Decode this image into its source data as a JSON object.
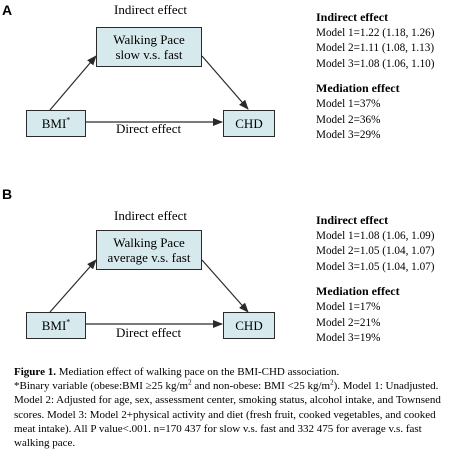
{
  "panels": [
    {
      "letter": "A",
      "indirect_label": "Indirect effect",
      "direct_label": "Direct effect",
      "mediator_line1": "Walking Pace",
      "mediator_line2": "slow v.s. fast",
      "exposure": "BMI",
      "exposure_marker": "*",
      "outcome": "CHD",
      "indirect_header": "Indirect effect",
      "indirect_rows": [
        "Model 1=1.22 (1.18, 1.26)",
        "Model 2=1.11 (1.08, 1.13)",
        "Model 3=1.08 (1.06, 1.10)"
      ],
      "mediation_header": "Mediation effect",
      "mediation_rows": [
        "Model 1=37%",
        "Model 2=36%",
        "Model 3=29%"
      ]
    },
    {
      "letter": "B",
      "indirect_label": "Indirect effect",
      "direct_label": "Direct effect",
      "mediator_line1": "Walking Pace",
      "mediator_line2": "average v.s. fast",
      "exposure": "BMI",
      "exposure_marker": "*",
      "outcome": "CHD",
      "indirect_header": "Indirect effect",
      "indirect_rows": [
        "Model 1=1.08 (1.06, 1.09)",
        "Model 2=1.05 (1.04, 1.07)",
        "Model 3=1.05 (1.04, 1.07)"
      ],
      "mediation_header": "Mediation effect",
      "mediation_rows": [
        "Model 1=17%",
        "Model 2=21%",
        "Model 3=19%"
      ]
    }
  ],
  "caption": {
    "title_bold": "Figure 1.",
    "title_rest": " Mediation effect of walking pace on the BMI-CHD association.",
    "footnote_marker": "*",
    "text_1": "Binary variable (obese:BMI ≥25 kg/m",
    "sup_1": "2",
    "text_2": " and non-obese: BMI <25 kg/m",
    "sup_2": "2",
    "text_3": "). Model 1: Unadjusted. Model 2: Adjusted for age, sex, assessment center, smoking status, alcohol intake, and Townsend scores. Model 3: Model 2+physical activity and diet (fresh fruit, cooked vegetables, and cooked meat intake). All P value<.001. n=170 437 for slow v.s. fast and 332 475 for average v.s. fast walking pace."
  },
  "colors": {
    "box_fill": "#d6e9ec",
    "stroke": "#2a2a2a"
  }
}
